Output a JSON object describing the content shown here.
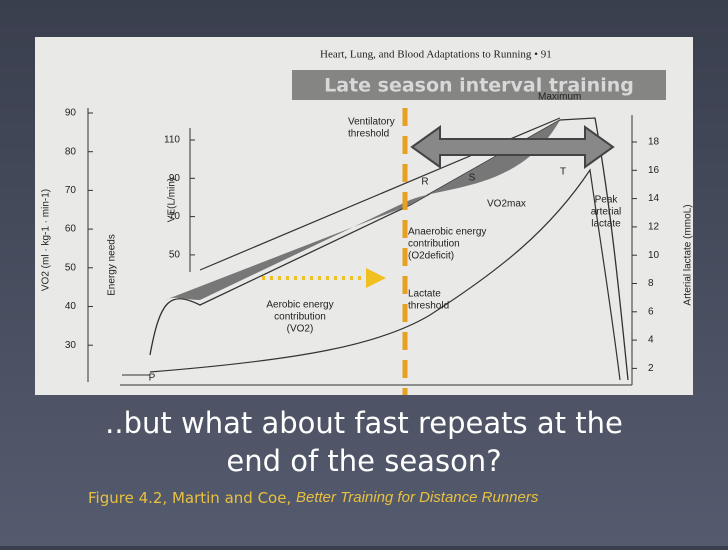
{
  "figure": {
    "header": "Heart, Lung, and Blood Adaptations to Running  •  91",
    "overlay": "Late season interval training",
    "left_axis": {
      "title": "VO2 (ml · kg-1 · min-1)",
      "ticks": [
        90,
        80,
        70,
        60,
        50,
        40,
        30
      ]
    },
    "inner_axis": {
      "title": "VE(L/min)",
      "ticks": [
        110,
        90,
        70,
        50
      ]
    },
    "right_axis": {
      "title": "Arterial lactate (mmoL)",
      "ticks": [
        18,
        16,
        14,
        12,
        10,
        8,
        6,
        4,
        2
      ]
    },
    "energy_needs": "Energy needs",
    "labels": {
      "ventilatory": [
        "Ventilatory",
        "threshold"
      ],
      "r": "R",
      "s": "S",
      "t": "T",
      "vo2max": "VO2max",
      "maximum": "Maximum",
      "peak": [
        "Peak",
        "arterial",
        "lactate"
      ],
      "anaerobic": [
        "Anaerobic energy",
        "contribution",
        "(O2deficit)"
      ],
      "lactate_threshold": [
        "Lactate",
        "threshold"
      ],
      "aerobic": [
        "Aerobic energy",
        "contribution",
        "(VO2)"
      ],
      "p": "P"
    }
  },
  "caption": {
    "lines": [
      "..but what about fast repeats at the",
      "end of the season?"
    ]
  },
  "credit": {
    "text": "Figure 4.2, Martin and Coe, ",
    "book": "Better Training for Distance Runners"
  }
}
